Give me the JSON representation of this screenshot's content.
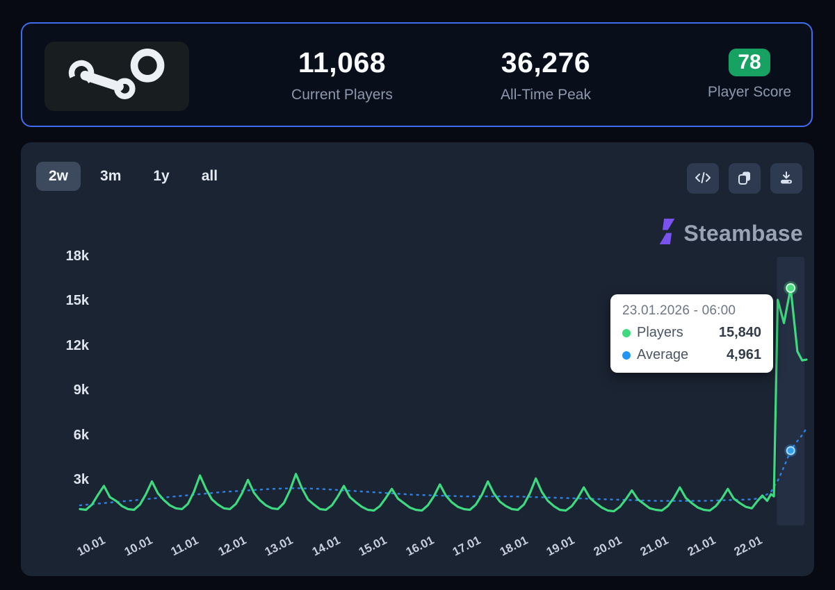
{
  "stats": {
    "current_players": {
      "value": "11,068",
      "label": "Current Players"
    },
    "all_time_peak": {
      "value": "36,276",
      "label": "All-Time Peak"
    },
    "player_score": {
      "value": "78",
      "label": "Player Score",
      "badge_color": "#17a163"
    }
  },
  "toolbar": {
    "ranges": [
      {
        "label": "2w",
        "active": true
      },
      {
        "label": "3m",
        "active": false
      },
      {
        "label": "1y",
        "active": false
      },
      {
        "label": "all",
        "active": false
      }
    ],
    "icons": [
      {
        "name": "code-icon"
      },
      {
        "name": "copy-icon"
      },
      {
        "name": "download-icon"
      }
    ]
  },
  "brand": {
    "name": "Steambase",
    "icon_color": "#7a52f0"
  },
  "tooltip": {
    "title": "23.01.2026 - 06:00",
    "rows": [
      {
        "label": "Players",
        "value": "15,840",
        "color": "#3fd97f"
      },
      {
        "label": "Average",
        "value": "4,961",
        "color": "#2196f3"
      }
    ]
  },
  "chart_data": {
    "type": "line",
    "title": "",
    "xlabel": "",
    "ylabel": "",
    "grid": false,
    "legend_position": "none",
    "xlim_days": [
      0,
      15.14
    ],
    "ylim": [
      0,
      18000
    ],
    "yticks": [
      {
        "label": "3k",
        "value": 3
      },
      {
        "label": "6k",
        "value": 6
      },
      {
        "label": "9k",
        "value": 9
      },
      {
        "label": "12k",
        "value": 12
      },
      {
        "label": "15k",
        "value": 15
      },
      {
        "label": "18k",
        "value": 18
      }
    ],
    "xticks": [
      "10.01",
      "10.01",
      "11.01",
      "12.01",
      "13.01",
      "14.01",
      "15.01",
      "16.01",
      "17.01",
      "18.01",
      "19.01",
      "20.01",
      "21.01",
      "21.01",
      "22.01"
    ],
    "series": [
      {
        "name": "Players",
        "color": "#3fd97f",
        "style": "solid",
        "unit": "thousands",
        "start_day": 0,
        "step_days": 0.125,
        "values": [
          1.05,
          1.0,
          1.35,
          2.0,
          2.6,
          1.85,
          1.6,
          1.25,
          1.05,
          1.0,
          1.35,
          2.05,
          2.9,
          2.1,
          1.65,
          1.3,
          1.1,
          1.05,
          1.4,
          2.2,
          3.3,
          2.4,
          1.7,
          1.35,
          1.1,
          1.05,
          1.4,
          2.1,
          3.0,
          2.15,
          1.65,
          1.3,
          1.1,
          1.05,
          1.45,
          2.3,
          3.4,
          2.45,
          1.7,
          1.35,
          1.05,
          1.0,
          1.3,
          1.9,
          2.6,
          1.85,
          1.5,
          1.2,
          1.0,
          0.95,
          1.25,
          1.8,
          2.4,
          1.75,
          1.45,
          1.15,
          1.0,
          0.95,
          1.3,
          1.9,
          2.7,
          1.95,
          1.5,
          1.2,
          1.05,
          1.0,
          1.35,
          2.0,
          2.9,
          2.1,
          1.55,
          1.25,
          1.05,
          1.0,
          1.35,
          2.1,
          3.1,
          2.2,
          1.6,
          1.25,
          1.0,
          0.95,
          1.25,
          1.8,
          2.5,
          1.8,
          1.45,
          1.15,
          0.95,
          0.9,
          1.2,
          1.7,
          2.3,
          1.7,
          1.4,
          1.1,
          1.0,
          0.95,
          1.25,
          1.8,
          2.5,
          1.8,
          1.45,
          1.15,
          1.0,
          0.95,
          1.25,
          1.75,
          2.4,
          1.75,
          1.45,
          1.2
        ],
        "tail_points": [
          [
            14.0,
            1.1
          ],
          [
            14.12,
            1.6
          ],
          [
            14.22,
            1.95
          ],
          [
            14.32,
            1.6
          ],
          [
            14.4,
            2.05
          ],
          [
            14.46,
            1.9
          ],
          [
            14.54,
            15.05
          ],
          [
            14.67,
            13.5
          ],
          [
            14.81,
            15.84
          ],
          [
            14.95,
            11.6
          ],
          [
            15.05,
            11.0
          ],
          [
            15.14,
            11.05
          ]
        ]
      },
      {
        "name": "Average",
        "color": "#2f7fe0",
        "style": "dashed",
        "unit": "thousands",
        "points": [
          [
            0,
            1.3
          ],
          [
            0.5,
            1.45
          ],
          [
            1,
            1.6
          ],
          [
            1.5,
            1.75
          ],
          [
            2,
            1.9
          ],
          [
            2.5,
            2.05
          ],
          [
            3,
            2.2
          ],
          [
            3.5,
            2.3
          ],
          [
            4,
            2.4
          ],
          [
            4.5,
            2.45
          ],
          [
            5,
            2.4
          ],
          [
            5.5,
            2.3
          ],
          [
            6,
            2.2
          ],
          [
            6.5,
            2.1
          ],
          [
            7,
            2.0
          ],
          [
            7.5,
            1.95
          ],
          [
            8,
            1.9
          ],
          [
            8.5,
            1.9
          ],
          [
            9,
            1.9
          ],
          [
            9.5,
            1.85
          ],
          [
            10,
            1.8
          ],
          [
            10.5,
            1.75
          ],
          [
            11,
            1.7
          ],
          [
            11.5,
            1.65
          ],
          [
            12,
            1.6
          ],
          [
            12.5,
            1.6
          ],
          [
            13,
            1.6
          ],
          [
            13.5,
            1.65
          ],
          [
            14,
            1.7
          ],
          [
            14.2,
            1.8
          ],
          [
            14.4,
            2.2
          ],
          [
            14.55,
            3.0
          ],
          [
            14.7,
            4.1
          ],
          [
            14.81,
            4.961
          ],
          [
            14.95,
            5.6
          ],
          [
            15.05,
            6.0
          ],
          [
            15.14,
            6.45
          ]
        ]
      }
    ],
    "hover": {
      "day": 14.81,
      "players_value": 15840,
      "average_value": 4961,
      "band_color": "#242f44",
      "players_dot_color": "#4ade80",
      "average_dot_color": "#2f9ff2"
    }
  }
}
